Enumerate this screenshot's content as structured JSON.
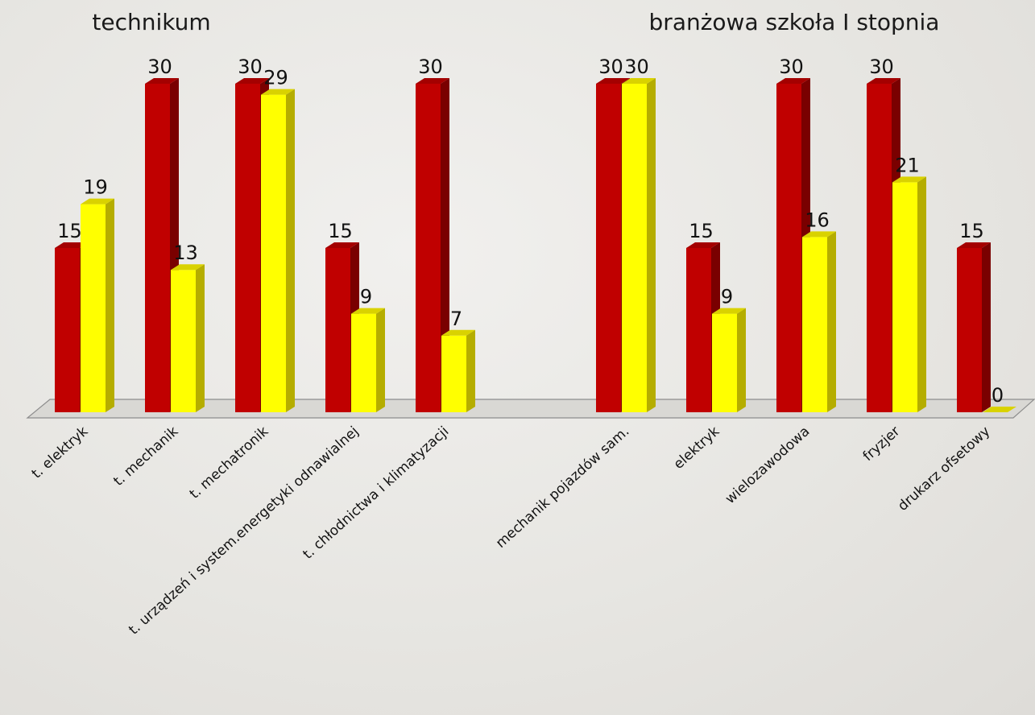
{
  "chart_data": {
    "type": "bar",
    "groups": [
      {
        "title": "technikum",
        "categories": [
          "t. elektryk",
          "t. mechanik",
          "t. mechatronik",
          "t. urządzeń i system.energetyki odnawialnej",
          "t. chłodnictwa i klimatyzacji"
        ],
        "series_values": [
          [
            15,
            30,
            30,
            15,
            30
          ],
          [
            19,
            13,
            29,
            9,
            7
          ]
        ]
      },
      {
        "title": "branżowa szkoła I stopnia",
        "categories": [
          "mechanik pojazdów sam.",
          "elektryk",
          "wielozawodowa",
          "fryzjer",
          "drukarz ofsetowy"
        ],
        "series_values": [
          [
            30,
            15,
            30,
            30,
            15
          ],
          [
            30,
            9,
            16,
            21,
            0
          ]
        ]
      }
    ],
    "series": [
      {
        "color": "#c00000",
        "top_color": "#a40000",
        "side_color": "#7a0000"
      },
      {
        "color": "#ffff00",
        "top_color": "#d9d200",
        "side_color": "#b5ad00"
      }
    ],
    "ylim": [
      0,
      30
    ],
    "grid": false,
    "legend": "none",
    "style": "3d-clustered-column"
  }
}
